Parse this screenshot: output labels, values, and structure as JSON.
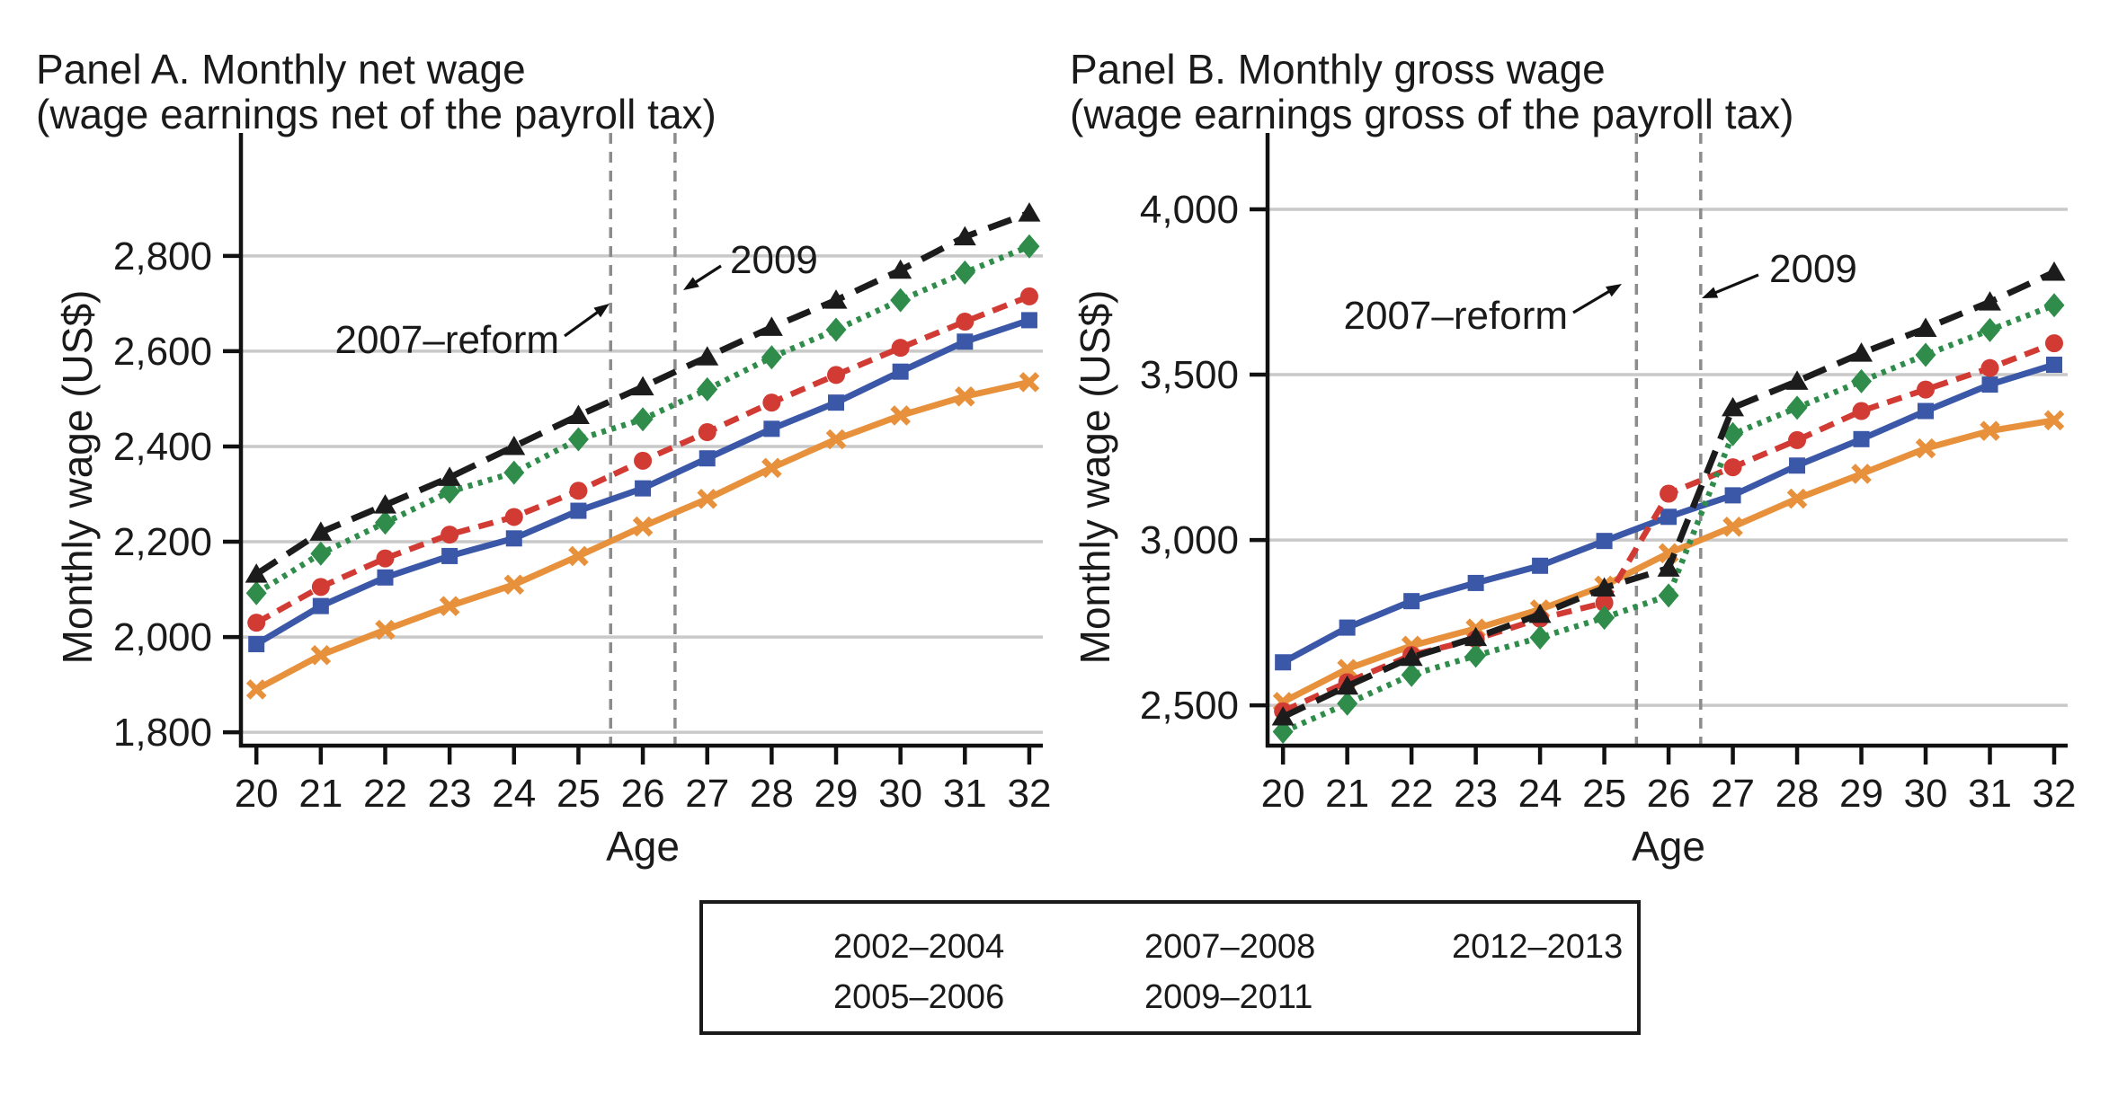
{
  "figure": {
    "legend": {
      "rows": [
        [
          "2002–2004",
          "2007–2008",
          "2012–2013"
        ],
        [
          "2005–2006",
          "2009–2011"
        ]
      ]
    }
  },
  "series_styles": {
    "2002–2004": {
      "color": "#E8913C",
      "line": "solid",
      "marker": "x"
    },
    "2005–2006": {
      "color": "#3B57A7",
      "line": "solid",
      "marker": "square"
    },
    "2007–2008": {
      "color": "#D23B34",
      "line": "dashed",
      "marker": "circle"
    },
    "2009–2011": {
      "color": "#2F8C4B",
      "line": "dotted",
      "marker": "diamond"
    },
    "2012–2013": {
      "color": "#1C1C1C",
      "line": "longdash",
      "marker": "triangle"
    }
  },
  "chart_data": [
    {
      "type": "line",
      "panel": "A",
      "title": "Panel A. Monthly net wage",
      "subtitle": "(wage earnings net of the payroll tax)",
      "xlabel": "Age",
      "ylabel": "Monthly wage (US$)",
      "x": [
        20,
        21,
        22,
        23,
        24,
        25,
        26,
        27,
        28,
        29,
        30,
        31,
        32
      ],
      "xlim": [
        19.76,
        32.21
      ],
      "ylim": [
        1772,
        3058
      ],
      "yticks": [
        1800,
        2000,
        2200,
        2400,
        2600,
        2800
      ],
      "ytick_labels": [
        "1,800",
        "2,000",
        "2,200",
        "2,400",
        "2,600",
        "2,800"
      ],
      "grid": true,
      "vlines": [
        {
          "x": 25.5
        },
        {
          "x": 26.5
        }
      ],
      "annotations": [
        {
          "text": "2007–reform"
        },
        {
          "text": "2009"
        }
      ],
      "series": [
        {
          "name": "2002–2004",
          "values": [
            1890,
            1962,
            2015,
            2065,
            2110,
            2170,
            2232,
            2290,
            2355,
            2415,
            2465,
            2505,
            2535
          ]
        },
        {
          "name": "2005–2006",
          "values": [
            1985,
            2065,
            2125,
            2170,
            2207,
            2265,
            2312,
            2375,
            2437,
            2492,
            2557,
            2620,
            2665
          ]
        },
        {
          "name": "2007–2008",
          "values": [
            2030,
            2105,
            2165,
            2215,
            2252,
            2307,
            2370,
            2430,
            2492,
            2550,
            2607,
            2662,
            2715
          ]
        },
        {
          "name": "2009–2011",
          "values": [
            2092,
            2175,
            2240,
            2305,
            2345,
            2415,
            2457,
            2520,
            2587,
            2645,
            2707,
            2765,
            2820
          ]
        },
        {
          "name": "2012–2013",
          "values": [
            2132,
            2220,
            2277,
            2335,
            2400,
            2465,
            2525,
            2588,
            2650,
            2707,
            2770,
            2840,
            2890
          ]
        }
      ]
    },
    {
      "type": "line",
      "panel": "B",
      "title": "Panel B. Monthly gross wage",
      "subtitle": "(wage earnings gross of the payroll tax)",
      "xlabel": "Age",
      "ylabel": "Monthly wage (US$)",
      "x": [
        20,
        21,
        22,
        23,
        24,
        25,
        26,
        27,
        28,
        29,
        30,
        31,
        32
      ],
      "xlim": [
        19.76,
        32.21
      ],
      "ylim": [
        2378,
        4231
      ],
      "yticks": [
        2500,
        3000,
        3500,
        4000
      ],
      "ytick_labels": [
        "2,500",
        "3,000",
        "3,500",
        "4,000"
      ],
      "grid": true,
      "vlines": [
        {
          "x": 25.5
        },
        {
          "x": 26.5
        }
      ],
      "annotations": [
        {
          "text": "2007–reform"
        },
        {
          "text": "2009"
        }
      ],
      "series": [
        {
          "name": "2002–2004",
          "values": [
            2510,
            2610,
            2680,
            2732,
            2790,
            2862,
            2960,
            3040,
            3125,
            3200,
            3277,
            3330,
            3362
          ]
        },
        {
          "name": "2005–2006",
          "values": [
            2630,
            2735,
            2815,
            2870,
            2922,
            2997,
            3070,
            3135,
            3225,
            3305,
            3390,
            3470,
            3530
          ]
        },
        {
          "name": "2007–2008",
          "values": [
            2482,
            2570,
            2652,
            2700,
            2762,
            2810,
            3140,
            3220,
            3302,
            3390,
            3455,
            3520,
            3595
          ]
        },
        {
          "name": "2009–2011",
          "values": [
            2420,
            2505,
            2592,
            2650,
            2705,
            2765,
            2832,
            3320,
            3400,
            3480,
            3560,
            3635,
            3710
          ]
        },
        {
          "name": "2012–2013",
          "values": [
            2465,
            2558,
            2645,
            2705,
            2775,
            2855,
            2915,
            3400,
            3480,
            3565,
            3640,
            3720,
            3810
          ]
        }
      ]
    }
  ]
}
